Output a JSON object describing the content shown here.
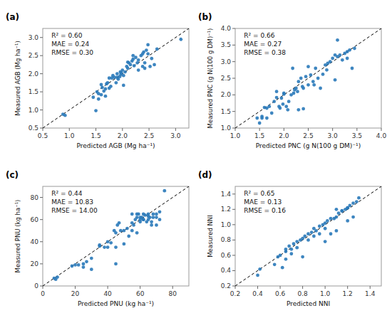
{
  "chart_data": [
    {
      "type": "scatter",
      "title": "(a)",
      "x_label": "Predicted AGB (Mg ha⁻¹)",
      "y_label": "Measured AGB (Mg ha⁻¹)",
      "color": "#2979b9",
      "grid": false,
      "xlim": [
        0.5,
        3.25
      ],
      "ylim": [
        0.5,
        3.25
      ],
      "xticks": [
        0.5,
        {
          "value": 1.0,
          "label": "1.0"
        },
        1.5,
        {
          "value": 2.0,
          "label": "2.0"
        },
        2.5,
        {
          "value": 3.0,
          "label": "3.0"
        }
      ],
      "yticks": [
        0.5,
        {
          "value": 1.0,
          "label": "1.0"
        },
        1.5,
        {
          "value": 2.0,
          "label": "2.0"
        },
        2.5,
        {
          "value": 3.0,
          "label": "3.0"
        }
      ],
      "annotations": [
        "R² = 0.60",
        "MAE = 0.24",
        "RMSE = 0.30"
      ],
      "x": [
        0.88,
        0.92,
        1.52,
        1.55,
        1.6,
        1.62,
        1.65,
        1.68,
        1.7,
        1.72,
        1.75,
        1.78,
        1.8,
        1.82,
        1.85,
        1.88,
        1.9,
        1.92,
        1.95,
        1.96,
        1.97,
        1.98,
        2.0,
        2.02,
        2.05,
        2.08,
        2.1,
        2.12,
        2.15,
        2.18,
        2.2,
        2.22,
        2.25,
        2.28,
        2.3,
        2.35,
        2.38,
        2.4,
        2.42,
        2.45,
        2.48,
        2.52,
        2.55,
        2.6,
        2.65,
        3.1,
        1.5,
        1.55,
        1.6,
        1.45,
        1.9,
        2.2,
        2.3,
        2.38,
        1.68,
        1.75,
        2.02,
        2.1,
        2.42,
        2.48
      ],
      "values": [
        0.88,
        0.85,
        1.5,
        1.3,
        1.7,
        1.62,
        1.52,
        1.58,
        1.72,
        1.75,
        1.6,
        1.65,
        1.88,
        1.95,
        1.9,
        1.75,
        2.0,
        1.85,
        1.92,
        2.05,
        1.98,
        2.02,
        2.1,
        1.95,
        2.05,
        2.2,
        2.15,
        2.3,
        2.25,
        2.35,
        2.4,
        2.22,
        2.45,
        2.3,
        2.38,
        2.5,
        2.55,
        2.6,
        2.3,
        2.65,
        2.8,
        2.2,
        2.42,
        2.25,
        2.68,
        2.95,
        0.98,
        1.45,
        1.42,
        1.35,
        1.9,
        2.5,
        2.1,
        2.2,
        1.38,
        1.88,
        1.68,
        2.32,
        2.15,
        2.55
      ]
    },
    {
      "type": "scatter",
      "title": "(b)",
      "x_label": "Predicted PNC (g N(100 g DM)⁻¹)",
      "y_label": "Measured PNC (g N(100 g DM)⁻¹)",
      "color": "#2979b9",
      "grid": false,
      "xlim": [
        1.0,
        4.0
      ],
      "ylim": [
        1.0,
        4.0
      ],
      "xticks": [
        {
          "value": 1.0,
          "label": "1.0"
        },
        1.5,
        {
          "value": 2.0,
          "label": "2.0"
        },
        2.5,
        {
          "value": 3.0,
          "label": "3.0"
        },
        3.5,
        {
          "value": 4.0,
          "label": "4.0"
        }
      ],
      "yticks": [
        {
          "value": 1.0,
          "label": "1.0"
        },
        1.5,
        {
          "value": 2.0,
          "label": "2.0"
        },
        2.5,
        {
          "value": 3.0,
          "label": "3.0"
        },
        3.5,
        {
          "value": 4.0,
          "label": "4.0"
        }
      ],
      "annotations": [
        "R² = 0.66",
        "MAE = 0.27",
        "RMSE = 0.38"
      ],
      "x": [
        1.45,
        1.5,
        1.55,
        1.6,
        1.65,
        1.7,
        1.75,
        1.8,
        1.85,
        1.9,
        1.92,
        1.95,
        1.98,
        2.0,
        2.05,
        2.08,
        2.1,
        2.15,
        2.2,
        2.22,
        2.25,
        2.28,
        2.3,
        2.35,
        2.38,
        2.4,
        2.45,
        2.5,
        2.55,
        2.6,
        2.65,
        2.7,
        2.75,
        2.8,
        2.85,
        2.88,
        2.9,
        2.95,
        3.0,
        3.05,
        3.1,
        3.15,
        3.2,
        3.25,
        3.3,
        3.35,
        3.4,
        3.45,
        2.3,
        1.55,
        2.0,
        2.4,
        3.1,
        1.65,
        2.18,
        2.62,
        3.05,
        1.85,
        2.5,
        3.3
      ],
      "values": [
        1.3,
        1.15,
        1.35,
        1.62,
        1.3,
        1.65,
        1.45,
        1.8,
        1.92,
        1.65,
        1.6,
        1.9,
        1.72,
        2.05,
        1.65,
        1.55,
        1.8,
        2.0,
        2.05,
        2.15,
        2.2,
        2.1,
        2.4,
        2.5,
        2.25,
        2.2,
        2.55,
        2.3,
        2.6,
        2.4,
        2.8,
        2.5,
        2.2,
        2.62,
        2.9,
        2.75,
        2.95,
        3.0,
        3.1,
        2.45,
        3.15,
        3.2,
        3.05,
        3.25,
        3.3,
        3.35,
        2.8,
        3.4,
        1.55,
        1.3,
        2.02,
        1.58,
        3.65,
        1.6,
        2.8,
        2.3,
        3.2,
        2.1,
        2.85,
        3.1
      ]
    },
    {
      "type": "scatter",
      "title": "(c)",
      "x_label": "Predicted PNU (kg ha⁻¹)",
      "y_label": "Measured PNU (kg ha⁻¹)",
      "color": "#2979b9",
      "grid": false,
      "xlim": [
        0,
        90
      ],
      "ylim": [
        0,
        90
      ],
      "xticks": [
        0,
        20,
        40,
        60,
        80
      ],
      "yticks": [
        0,
        20,
        40,
        60,
        80
      ],
      "annotations": [
        "R² = 0.44",
        "MAE = 10.83",
        "RMSE = 14.00"
      ],
      "x": [
        7,
        8,
        9,
        18,
        20,
        22,
        25,
        27,
        30,
        35,
        38,
        40,
        42,
        44,
        45,
        46,
        47,
        48,
        50,
        52,
        53,
        55,
        56,
        57,
        58,
        59,
        60,
        61,
        62,
        63,
        64,
        65,
        66,
        67,
        68,
        70,
        72,
        75,
        45,
        50,
        55,
        58,
        60,
        62,
        65,
        68,
        70,
        72,
        60,
        62,
        58,
        55,
        65,
        67,
        70,
        25,
        30,
        35,
        40,
        45
      ],
      "values": [
        7,
        6,
        8,
        18,
        19,
        19,
        17,
        22,
        15,
        37,
        35,
        40,
        39,
        50,
        48,
        55,
        57,
        50,
        50,
        52,
        45,
        57,
        55,
        60,
        62,
        65,
        60,
        62,
        65,
        64,
        58,
        65,
        62,
        58,
        62,
        65,
        67,
        86,
        35,
        38,
        50,
        65,
        62,
        60,
        63,
        65,
        62,
        60,
        58,
        60,
        48,
        65,
        60,
        55,
        55,
        20,
        25,
        36,
        35,
        20
      ]
    },
    {
      "type": "scatter",
      "title": "(d)",
      "x_label": "Predicted NNI",
      "y_label": "Measured NNI",
      "color": "#2979b9",
      "grid": false,
      "xlim": [
        0.2,
        1.5
      ],
      "ylim": [
        0.2,
        1.5
      ],
      "xticks": [
        0.2,
        0.4,
        0.6,
        0.8,
        {
          "value": 1.0,
          "label": "1.0"
        },
        1.2,
        1.4
      ],
      "yticks": [
        0.2,
        0.4,
        0.6,
        0.8,
        {
          "value": 1.0,
          "label": "1.0"
        },
        1.2,
        1.4
      ],
      "annotations": [
        "R² = 0.65",
        "MAE = 0.13",
        "RMSE = 0.16"
      ],
      "x": [
        0.4,
        0.42,
        0.58,
        0.6,
        0.62,
        0.65,
        0.65,
        0.68,
        0.7,
        0.72,
        0.75,
        0.78,
        0.8,
        0.82,
        0.85,
        0.88,
        0.9,
        0.92,
        0.95,
        0.98,
        1.0,
        1.0,
        1.02,
        1.05,
        1.08,
        1.1,
        1.1,
        1.12,
        1.15,
        1.18,
        1.2,
        1.2,
        1.22,
        1.25,
        1.25,
        1.28,
        1.3,
        0.65,
        0.7,
        0.8,
        0.9,
        1.0,
        1.1,
        1.2,
        0.55,
        0.75,
        0.95,
        1.05,
        1.15,
        0.85
      ],
      "values": [
        0.34,
        0.42,
        0.58,
        0.6,
        0.44,
        0.65,
        0.68,
        0.72,
        0.68,
        0.75,
        0.78,
        0.8,
        0.82,
        0.85,
        0.88,
        0.9,
        0.95,
        0.92,
        0.98,
        1.0,
        1.02,
        0.78,
        1.05,
        0.88,
        1.08,
        1.1,
        0.92,
        1.15,
        1.18,
        1.2,
        1.22,
        1.05,
        1.25,
        1.28,
        1.1,
        1.3,
        1.35,
        0.55,
        0.62,
        0.58,
        0.85,
        0.95,
        1.2,
        1.22,
        0.48,
        0.7,
        0.88,
        1.08,
        1.18,
        0.8
      ]
    }
  ]
}
